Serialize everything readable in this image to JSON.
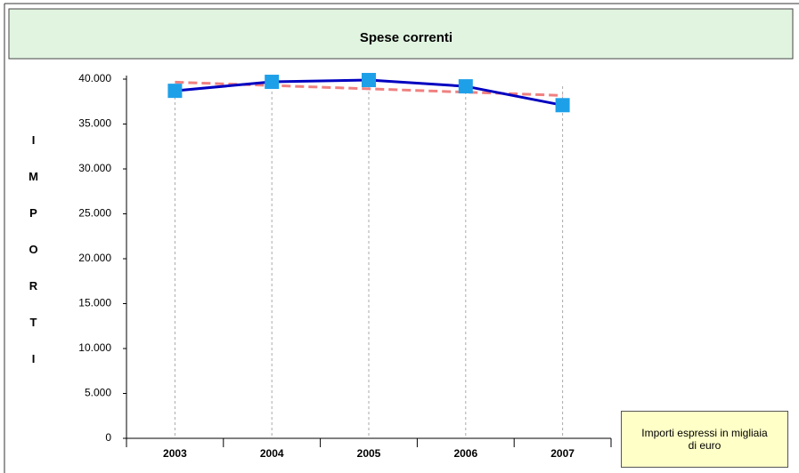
{
  "chart_data": {
    "type": "line",
    "title": "Spese correnti",
    "y_label": "IMPORTI",
    "note": "Importi espressi in migliaia di euro",
    "categories": [
      "2003",
      "2004",
      "2005",
      "2006",
      "2007"
    ],
    "series": [
      {
        "color": "#0000c0",
        "marker_color": "#1ea0e8",
        "values": [
          38700,
          39700,
          39900,
          39200,
          37100
        ]
      },
      {
        "color": "#f08080",
        "dashed": true,
        "values": [
          39660,
          39290,
          38920,
          38550,
          38180
        ]
      }
    ],
    "ylim": [
      0,
      40000
    ],
    "yticks": [
      0,
      {
        "value": 5000,
        "label": "5.000"
      },
      {
        "value": 10000,
        "label": "10.000"
      },
      {
        "value": 15000,
        "label": "15.000"
      },
      {
        "value": 20000,
        "label": "20.000"
      },
      {
        "value": 25000,
        "label": "25.000"
      },
      {
        "value": 30000,
        "label": "30.000"
      },
      {
        "value": 35000,
        "label": "35.000"
      },
      {
        "value": 40000,
        "label": "40.000"
      }
    ],
    "grid": true
  }
}
